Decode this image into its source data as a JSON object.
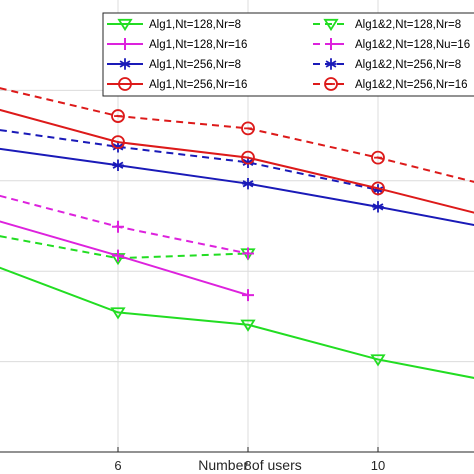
{
  "chart_data": {
    "type": "line",
    "xlabel": "Number of users",
    "ylabel": "",
    "xlim": [
      4,
      11.5
    ],
    "ylim": [
      0,
      1
    ],
    "xticks": [
      6,
      8,
      10
    ],
    "grid": true,
    "legend_position": "top-right",
    "series": [
      {
        "name": "Alg1,Nt=128,Nr=8",
        "color": "#22dd22",
        "dash": "solid",
        "marker": "triangle-down",
        "x": [
          4,
          6,
          8,
          10,
          11.5
        ],
        "y": [
          0.522,
          0.386,
          0.352,
          0.256,
          0.204
        ]
      },
      {
        "name": "Alg1&2,Nt=128,Nr=8",
        "color": "#22dd22",
        "dash": "dashed",
        "marker": "triangle-down",
        "x": [
          4,
          6,
          8
        ],
        "y": [
          0.603,
          0.536,
          0.549
        ]
      },
      {
        "name": "Alg1,Nt=128,Nr=16",
        "color": "#dd22dd",
        "dash": "solid",
        "marker": "plus",
        "x": [
          4,
          6,
          8
        ],
        "y": [
          0.647,
          0.543,
          0.434
        ]
      },
      {
        "name": "Alg1&2,Nt=128,Nu=16",
        "color": "#dd22dd",
        "dash": "dashed",
        "marker": "plus",
        "x": [
          4,
          6,
          8
        ],
        "y": [
          0.717,
          0.623,
          0.549
        ]
      },
      {
        "name": "Alg1,Nt=256,Nr=8",
        "color": "#1a1ab8",
        "dash": "solid",
        "marker": "star",
        "x": [
          4,
          6,
          8,
          10,
          11.5
        ],
        "y": [
          0.843,
          0.793,
          0.742,
          0.678,
          0.627
        ]
      },
      {
        "name": "Alg1&2,Nt=256,Nr=8",
        "color": "#1a1ab8",
        "dash": "dashed",
        "marker": "star",
        "x": [
          4,
          6,
          8,
          10
        ],
        "y": [
          0.895,
          0.844,
          0.801,
          0.725
        ]
      },
      {
        "name": "Alg1,Nt=256,Nr=16",
        "color": "#dd1a1a",
        "dash": "solid",
        "marker": "circle",
        "x": [
          4,
          6,
          8,
          10,
          11.5
        ],
        "y": [
          0.955,
          0.857,
          0.814,
          0.729,
          0.661
        ]
      },
      {
        "name": "Alg1&2,Nt=256,Nr=16",
        "color": "#dd1a1a",
        "dash": "dashed",
        "marker": "circle-line",
        "x": [
          4,
          6,
          8,
          10,
          11.5
        ],
        "y": [
          1.014,
          0.929,
          0.895,
          0.814,
          0.746
        ]
      }
    ]
  }
}
